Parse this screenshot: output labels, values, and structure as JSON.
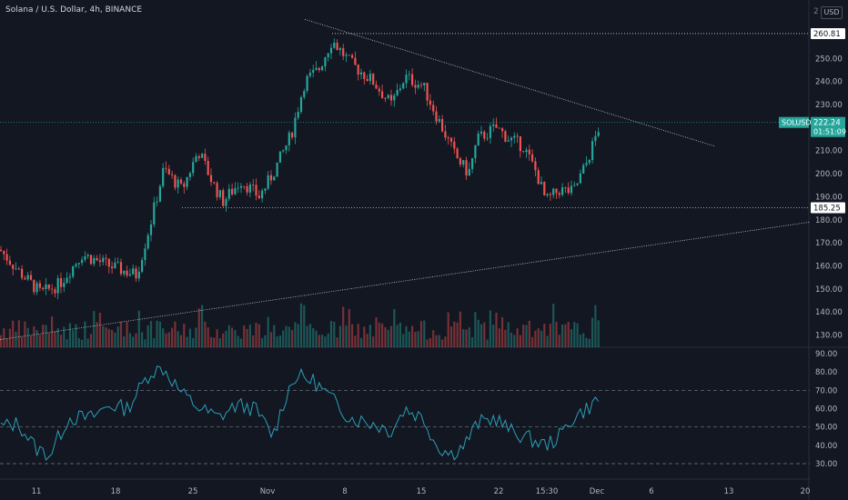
{
  "header": {
    "title": "Solana / U.S. Dollar, 4h, BINANCE",
    "currency_badge": "USD",
    "currency_partial": "2"
  },
  "price_scale": {
    "ticks": [
      "250.00",
      "240.00",
      "230.00",
      "220.00",
      "210.00",
      "200.00",
      "190.00",
      "180.00",
      "170.00",
      "160.00",
      "150.00",
      "140.00",
      "130.00"
    ],
    "tick_values": [
      250,
      240,
      230,
      220,
      210,
      200,
      190,
      180,
      170,
      160,
      150,
      140,
      130
    ],
    "range": [
      127,
      271
    ],
    "resistance_label": "260.81",
    "resistance_value": 260.81,
    "support_label": "185.25",
    "support_value": 185.25,
    "symbol_label": "SOLUSD",
    "last_price_label": "222.24",
    "last_price": 222.24,
    "countdown": "01:51:09"
  },
  "rsi_scale": {
    "ticks": [
      "90.00",
      "80.00",
      "70.00",
      "60.00",
      "50.00",
      "40.00",
      "30.00"
    ],
    "tick_values": [
      90,
      80,
      70,
      60,
      50,
      40,
      30
    ],
    "range": [
      25,
      92
    ],
    "levels": [
      70,
      50,
      30
    ]
  },
  "time_axis": {
    "labels": [
      "11",
      "18",
      "25",
      "Nov",
      "8",
      "15",
      "22",
      "15:30",
      "Dec",
      "6",
      "13",
      "20"
    ]
  },
  "colors": {
    "background": "#131722",
    "up": "#26a69a",
    "down": "#ef5350",
    "rsi_line": "#2a9fb5",
    "grid": "#2a2e39",
    "text": "#b2b5be"
  },
  "chart_data": {
    "type": "line",
    "candle_control_points": [
      [
        0,
        167
      ],
      [
        20,
        158
      ],
      [
        45,
        148
      ],
      [
        65,
        152
      ],
      [
        90,
        165
      ],
      [
        120,
        160
      ],
      [
        150,
        156
      ],
      [
        165,
        178
      ],
      [
        180,
        202
      ],
      [
        200,
        193
      ],
      [
        218,
        210
      ],
      [
        235,
        195
      ],
      [
        245,
        188
      ],
      [
        265,
        197
      ],
      [
        285,
        190
      ],
      [
        300,
        200
      ],
      [
        320,
        217
      ],
      [
        335,
        240
      ],
      [
        350,
        245
      ],
      [
        365,
        258
      ],
      [
        385,
        248
      ],
      [
        410,
        240
      ],
      [
        430,
        230
      ],
      [
        445,
        242
      ],
      [
        465,
        238
      ],
      [
        480,
        225
      ],
      [
        500,
        208
      ],
      [
        515,
        200
      ],
      [
        525,
        215
      ],
      [
        545,
        220
      ],
      [
        560,
        215
      ],
      [
        575,
        212
      ],
      [
        590,
        200
      ],
      [
        600,
        188
      ],
      [
        615,
        193
      ],
      [
        630,
        192
      ],
      [
        645,
        205
      ],
      [
        660,
        222.24
      ]
    ],
    "rsi_control_points": [
      [
        0,
        50
      ],
      [
        20,
        52
      ],
      [
        40,
        38
      ],
      [
        55,
        35
      ],
      [
        75,
        55
      ],
      [
        100,
        55
      ],
      [
        120,
        62
      ],
      [
        140,
        60
      ],
      [
        165,
        80
      ],
      [
        180,
        82
      ],
      [
        200,
        68
      ],
      [
        220,
        60
      ],
      [
        240,
        55
      ],
      [
        260,
        62
      ],
      [
        280,
        60
      ],
      [
        300,
        45
      ],
      [
        315,
        68
      ],
      [
        325,
        78
      ],
      [
        345,
        75
      ],
      [
        365,
        65
      ],
      [
        385,
        55
      ],
      [
        410,
        52
      ],
      [
        430,
        48
      ],
      [
        445,
        60
      ],
      [
        465,
        55
      ],
      [
        480,
        40
      ],
      [
        495,
        35
      ],
      [
        510,
        40
      ],
      [
        525,
        52
      ],
      [
        545,
        55
      ],
      [
        560,
        48
      ],
      [
        575,
        45
      ],
      [
        590,
        42
      ],
      [
        600,
        40
      ],
      [
        615,
        45
      ],
      [
        630,
        55
      ],
      [
        645,
        60
      ],
      [
        660,
        66
      ]
    ],
    "trendlines": [
      {
        "name": "descending",
        "from": [
          335,
          267
        ],
        "to": [
          785,
          212
        ]
      },
      {
        "name": "ascending",
        "from": [
          0,
          128
        ],
        "to": [
          890,
          179
        ]
      }
    ]
  }
}
